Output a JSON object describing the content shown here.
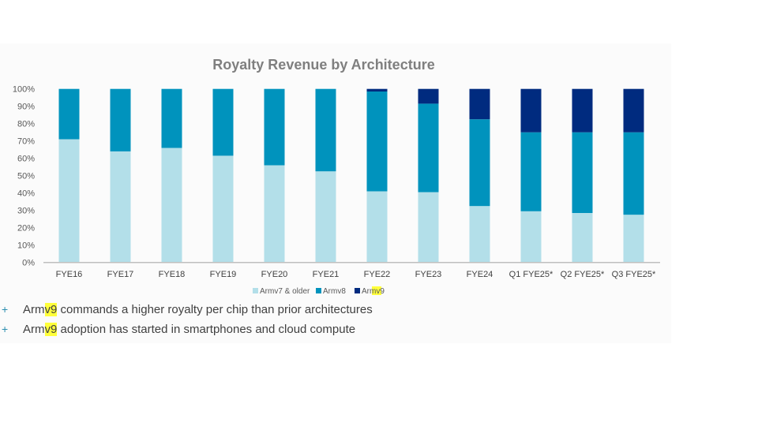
{
  "chart_data": {
    "type": "bar",
    "stacked": true,
    "title": "Royalty Revenue by Architecture",
    "xlabel": "",
    "ylabel": "",
    "ylim": [
      0,
      100
    ],
    "yticks": [
      "0%",
      "10%",
      "20%",
      "30%",
      "40%",
      "50%",
      "60%",
      "70%",
      "80%",
      "90%",
      "100%"
    ],
    "categories": [
      "FYE16",
      "FYE17",
      "FYE18",
      "FYE19",
      "FYE20",
      "FYE21",
      "FYE22",
      "FYE23",
      "FYE24",
      "Q1 FYE25*",
      "Q2 FYE25*",
      "Q3 FYE25*"
    ],
    "series": [
      {
        "name": "Armv7 & older",
        "color": "#b3dfe9",
        "values": [
          71,
          64,
          66,
          61.5,
          56,
          52.5,
          41,
          40.5,
          32.5,
          29.5,
          28.5,
          27.5
        ]
      },
      {
        "name": "Armv8",
        "color": "#0093bd",
        "values": [
          29,
          36,
          34,
          38.5,
          44,
          47.5,
          57.5,
          51,
          50,
          45.5,
          46.5,
          47.5
        ]
      },
      {
        "name": "Armv9",
        "color": "#002b7f",
        "values": [
          0,
          0,
          0,
          0,
          0,
          0,
          1.5,
          8.5,
          17.5,
          25,
          25,
          25
        ]
      }
    ],
    "legend_position": "bottom-right",
    "grid": false
  },
  "legend": {
    "armv7": "Armv7 & older",
    "armv8": "Armv8",
    "armv9_prefix": "Arm",
    "armv9_highlight": "v9"
  },
  "bullets": [
    {
      "prefix": "Arm",
      "highlight": "v9",
      "rest": " commands a higher royalty per chip than prior architectures"
    },
    {
      "prefix": "Arm",
      "highlight": "v9",
      "rest": " adoption has started in smartphones and cloud compute"
    }
  ],
  "bullet_icon": "plus-icon"
}
